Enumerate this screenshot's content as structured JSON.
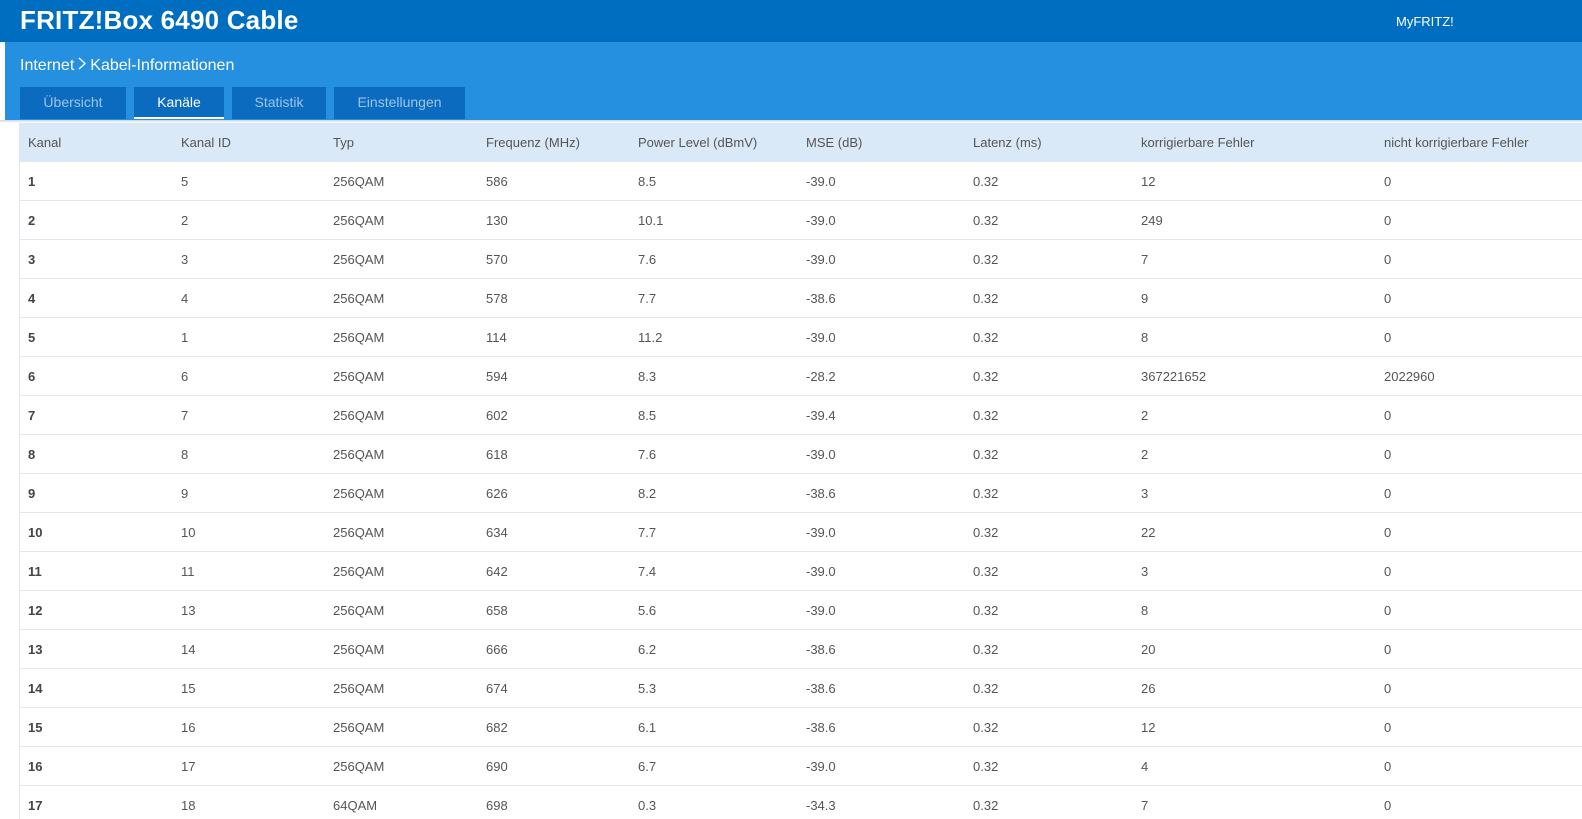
{
  "header": {
    "title": "FRITZ!Box 6490 Cable",
    "myfritz": "MyFRITZ!"
  },
  "breadcrumb": {
    "parent": "Internet",
    "current": "Kabel-Informationen"
  },
  "tabs": [
    {
      "label": "Übersicht",
      "active": false
    },
    {
      "label": "Kanäle",
      "active": true
    },
    {
      "label": "Statistik",
      "active": false
    },
    {
      "label": "Einstellungen",
      "active": false
    }
  ],
  "table": {
    "columns": [
      "Kanal",
      "Kanal ID",
      "Typ",
      "Frequenz (MHz)",
      "Power Level (dBmV)",
      "MSE (dB)",
      "Latenz (ms)",
      "korrigierbare Fehler",
      "nicht korrigierbare Fehler"
    ],
    "rows": [
      [
        "1",
        "5",
        "256QAM",
        "586",
        "8.5",
        "-39.0",
        "0.32",
        "12",
        "0"
      ],
      [
        "2",
        "2",
        "256QAM",
        "130",
        "10.1",
        "-39.0",
        "0.32",
        "249",
        "0"
      ],
      [
        "3",
        "3",
        "256QAM",
        "570",
        "7.6",
        "-39.0",
        "0.32",
        "7",
        "0"
      ],
      [
        "4",
        "4",
        "256QAM",
        "578",
        "7.7",
        "-38.6",
        "0.32",
        "9",
        "0"
      ],
      [
        "5",
        "1",
        "256QAM",
        "114",
        "11.2",
        "-39.0",
        "0.32",
        "8",
        "0"
      ],
      [
        "6",
        "6",
        "256QAM",
        "594",
        "8.3",
        "-28.2",
        "0.32",
        "367221652",
        "2022960"
      ],
      [
        "7",
        "7",
        "256QAM",
        "602",
        "8.5",
        "-39.4",
        "0.32",
        "2",
        "0"
      ],
      [
        "8",
        "8",
        "256QAM",
        "618",
        "7.6",
        "-39.0",
        "0.32",
        "2",
        "0"
      ],
      [
        "9",
        "9",
        "256QAM",
        "626",
        "8.2",
        "-38.6",
        "0.32",
        "3",
        "0"
      ],
      [
        "10",
        "10",
        "256QAM",
        "634",
        "7.7",
        "-39.0",
        "0.32",
        "22",
        "0"
      ],
      [
        "11",
        "11",
        "256QAM",
        "642",
        "7.4",
        "-39.0",
        "0.32",
        "3",
        "0"
      ],
      [
        "12",
        "13",
        "256QAM",
        "658",
        "5.6",
        "-39.0",
        "0.32",
        "8",
        "0"
      ],
      [
        "13",
        "14",
        "256QAM",
        "666",
        "6.2",
        "-38.6",
        "0.32",
        "20",
        "0"
      ],
      [
        "14",
        "15",
        "256QAM",
        "674",
        "5.3",
        "-38.6",
        "0.32",
        "26",
        "0"
      ],
      [
        "15",
        "16",
        "256QAM",
        "682",
        "6.1",
        "-38.6",
        "0.32",
        "12",
        "0"
      ],
      [
        "16",
        "17",
        "256QAM",
        "690",
        "6.7",
        "-39.0",
        "0.32",
        "4",
        "0"
      ],
      [
        "17",
        "18",
        "64QAM",
        "698",
        "0.3",
        "-34.3",
        "0.32",
        "7",
        "0"
      ]
    ]
  }
}
